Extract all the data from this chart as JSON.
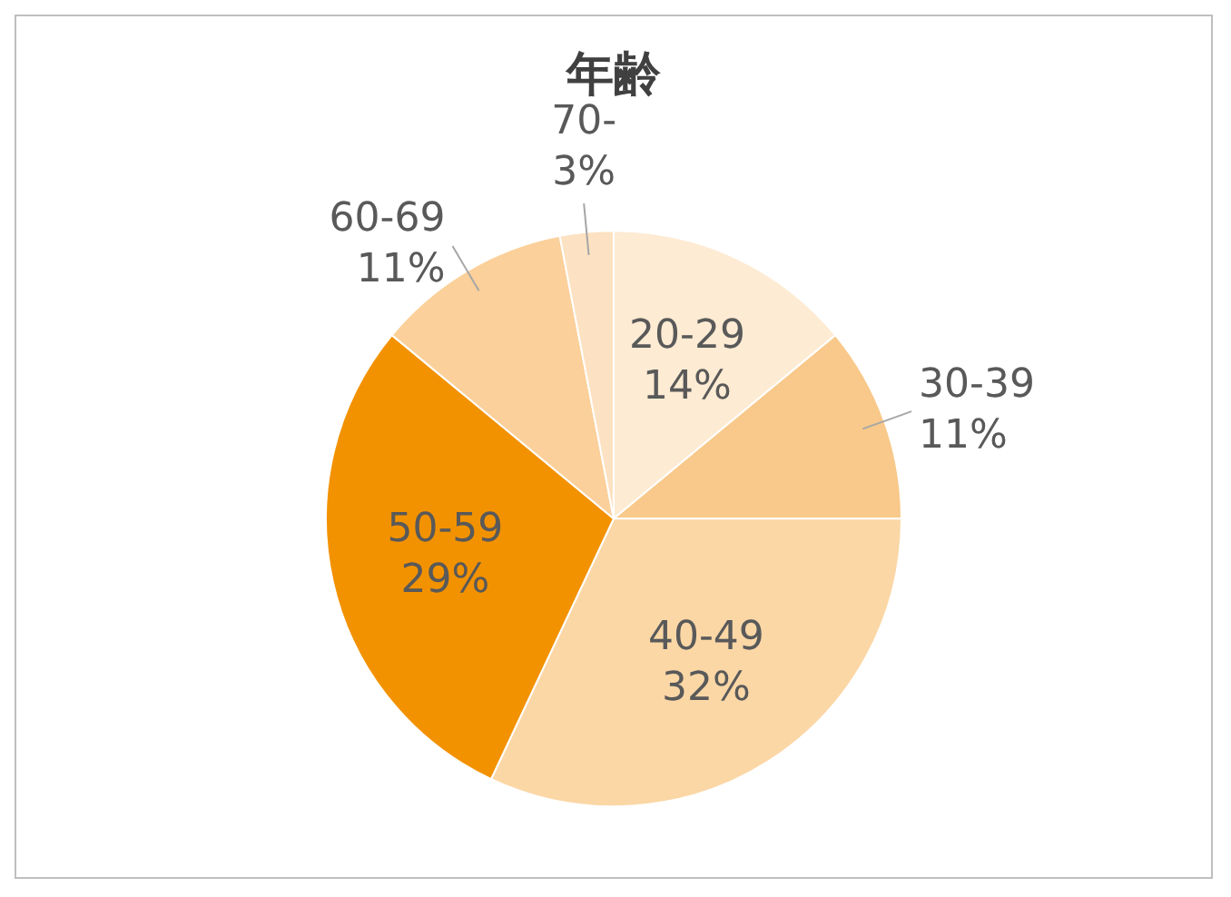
{
  "chart_data": {
    "type": "pie",
    "title": "年齢",
    "categories": [
      "20-29",
      "30-39",
      "40-49",
      "50-59",
      "60-69",
      "70-"
    ],
    "values": [
      14,
      11,
      32,
      29,
      11,
      3
    ],
    "value_labels": [
      "14%",
      "11%",
      "32%",
      "29%",
      "11%",
      "3%"
    ],
    "colors": [
      "#fdebd3",
      "#f8c98a",
      "#fbd7a6",
      "#f39200",
      "#fbd09a",
      "#fce2c2"
    ],
    "legend": false
  }
}
